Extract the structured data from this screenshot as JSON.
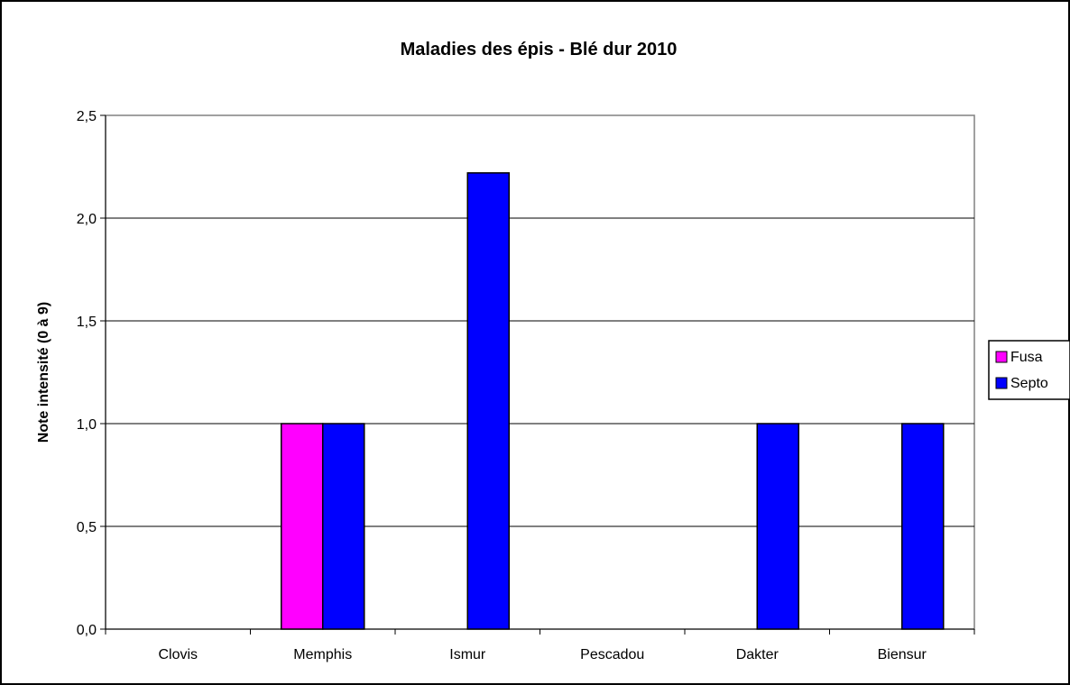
{
  "chart_data": {
    "type": "bar",
    "title": "Maladies des épis - Blé dur 2010",
    "xlabel": "",
    "ylabel": "Note intensité (0 à 9)",
    "categories": [
      "Clovis",
      "Memphis",
      "Ismur",
      "Pescadou",
      "Dakter",
      "Biensur"
    ],
    "series": [
      {
        "name": "Fusa",
        "color": "#ff00ff",
        "values": [
          0,
          1.0,
          0,
          0,
          0,
          0
        ]
      },
      {
        "name": "Septo",
        "color": "#0000ff",
        "values": [
          0,
          1.0,
          2.22,
          0,
          1.0,
          1.0
        ]
      }
    ],
    "ylim": [
      0,
      2.5
    ],
    "yticks": [
      0,
      0.5,
      1.0,
      1.5,
      2.0,
      2.5
    ],
    "ytick_labels": [
      "0,0",
      "0,5",
      "1,0",
      "1,5",
      "2,0",
      "2,5"
    ],
    "grid": true,
    "legend_position": "right",
    "background_color": "#ffffff",
    "gridline_color": "#000000",
    "plot_border_color": "#808080"
  }
}
